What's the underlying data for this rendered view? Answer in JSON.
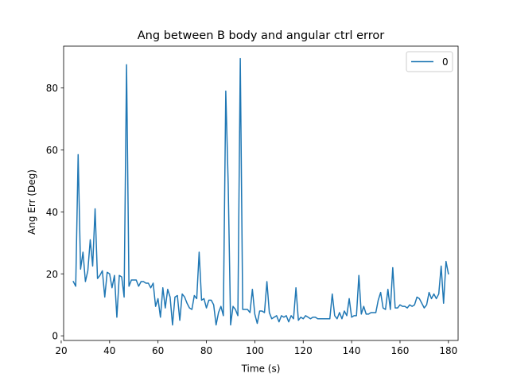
{
  "chart_data": {
    "type": "line",
    "title": "Ang between B body and angular ctrl error",
    "xlabel": "Time (s)",
    "ylabel": "Ang Err (Deg)",
    "xlim": [
      21,
      184
    ],
    "ylim": [
      -1.5,
      93.5
    ],
    "xticks": [
      20,
      40,
      60,
      80,
      100,
      120,
      140,
      160,
      180
    ],
    "yticks": [
      0,
      20,
      40,
      60,
      80
    ],
    "grid": false,
    "legend": {
      "placement": "upper right",
      "entries": [
        "0"
      ]
    },
    "series": [
      {
        "name": "0",
        "color": "#1f77b4",
        "points": [
          [
            25,
            17.5
          ],
          [
            26,
            16
          ],
          [
            27,
            58.5
          ],
          [
            28,
            21.5
          ],
          [
            29,
            27
          ],
          [
            30,
            17.5
          ],
          [
            31,
            21
          ],
          [
            32,
            31
          ],
          [
            33,
            22.5
          ],
          [
            34,
            41
          ],
          [
            35,
            18.5
          ],
          [
            36,
            19.5
          ],
          [
            37,
            21
          ],
          [
            38,
            12.5
          ],
          [
            39,
            20.5
          ],
          [
            40,
            20
          ],
          [
            41,
            15.5
          ],
          [
            42,
            19.5
          ],
          [
            43,
            6
          ],
          [
            44,
            19.5
          ],
          [
            45,
            19
          ],
          [
            46,
            12.5
          ],
          [
            47,
            87.5
          ],
          [
            48,
            16
          ],
          [
            49,
            18
          ],
          [
            50,
            18
          ],
          [
            51,
            18
          ],
          [
            52,
            16
          ],
          [
            53,
            17.5
          ],
          [
            54,
            17.5
          ],
          [
            55,
            17
          ],
          [
            56,
            17
          ],
          [
            57,
            15.5
          ],
          [
            58,
            17
          ],
          [
            59,
            9.5
          ],
          [
            60,
            12
          ],
          [
            61,
            6
          ],
          [
            62,
            15.5
          ],
          [
            63,
            9
          ],
          [
            64,
            15
          ],
          [
            65,
            12.5
          ],
          [
            66,
            3.5
          ],
          [
            67,
            12.5
          ],
          [
            68,
            13
          ],
          [
            69,
            5
          ],
          [
            70,
            13.5
          ],
          [
            71,
            12.5
          ],
          [
            72,
            10.5
          ],
          [
            73,
            9
          ],
          [
            74,
            8.5
          ],
          [
            75,
            13
          ],
          [
            76,
            12
          ],
          [
            77,
            27
          ],
          [
            78,
            11.5
          ],
          [
            79,
            12
          ],
          [
            80,
            9
          ],
          [
            81,
            11.5
          ],
          [
            82,
            11.5
          ],
          [
            83,
            10
          ],
          [
            84,
            3.5
          ],
          [
            85,
            7.5
          ],
          [
            86,
            9.5
          ],
          [
            87,
            6.5
          ],
          [
            88,
            79
          ],
          [
            89,
            49
          ],
          [
            90,
            3.5
          ],
          [
            91,
            9.5
          ],
          [
            92,
            8.5
          ],
          [
            93,
            6.5
          ],
          [
            94,
            89.5
          ],
          [
            95,
            8.5
          ],
          [
            96,
            8.5
          ],
          [
            97,
            8.5
          ],
          [
            98,
            7.5
          ],
          [
            99,
            15
          ],
          [
            100,
            7
          ],
          [
            101,
            4
          ],
          [
            102,
            8
          ],
          [
            103,
            8
          ],
          [
            104,
            7.5
          ],
          [
            105,
            17.5
          ],
          [
            106,
            7.5
          ],
          [
            107,
            5.5
          ],
          [
            108,
            6
          ],
          [
            109,
            6.5
          ],
          [
            110,
            4.5
          ],
          [
            111,
            6.5
          ],
          [
            112,
            6
          ],
          [
            113,
            6.5
          ],
          [
            114,
            4.5
          ],
          [
            115,
            6.5
          ],
          [
            116,
            5.5
          ],
          [
            117,
            15.5
          ],
          [
            118,
            5
          ],
          [
            119,
            6
          ],
          [
            120,
            5.5
          ],
          [
            121,
            6.5
          ],
          [
            122,
            6
          ],
          [
            123,
            5.5
          ],
          [
            124,
            6
          ],
          [
            125,
            6
          ],
          [
            126,
            5.5
          ],
          [
            127,
            5.5
          ],
          [
            128,
            5.5
          ],
          [
            129,
            5.5
          ],
          [
            130,
            5.5
          ],
          [
            131,
            5.5
          ],
          [
            132,
            13.5
          ],
          [
            133,
            6.5
          ],
          [
            134,
            5.5
          ],
          [
            135,
            7.5
          ],
          [
            136,
            5.5
          ],
          [
            137,
            8
          ],
          [
            138,
            6.5
          ],
          [
            139,
            12
          ],
          [
            140,
            6
          ],
          [
            141,
            6.5
          ],
          [
            142,
            6.5
          ],
          [
            143,
            19.5
          ],
          [
            144,
            7
          ],
          [
            145,
            9.5
          ],
          [
            146,
            7
          ],
          [
            147,
            7
          ],
          [
            148,
            7.5
          ],
          [
            149,
            7.5
          ],
          [
            150,
            7.5
          ],
          [
            151,
            11.5
          ],
          [
            152,
            14
          ],
          [
            153,
            9
          ],
          [
            154,
            8.5
          ],
          [
            155,
            15
          ],
          [
            156,
            8.5
          ],
          [
            157,
            22
          ],
          [
            158,
            9
          ],
          [
            159,
            9
          ],
          [
            160,
            10
          ],
          [
            161,
            9.5
          ],
          [
            162,
            9.5
          ],
          [
            163,
            9
          ],
          [
            164,
            10
          ],
          [
            165,
            9.5
          ],
          [
            166,
            10
          ],
          [
            167,
            12.5
          ],
          [
            168,
            12
          ],
          [
            169,
            10.5
          ],
          [
            170,
            9
          ],
          [
            171,
            10
          ],
          [
            172,
            14
          ],
          [
            173,
            12
          ],
          [
            174,
            13.5
          ],
          [
            175,
            12
          ],
          [
            176,
            13.5
          ],
          [
            177,
            22.5
          ],
          [
            178,
            10.5
          ],
          [
            179,
            24
          ],
          [
            180,
            20
          ]
        ]
      }
    ]
  }
}
